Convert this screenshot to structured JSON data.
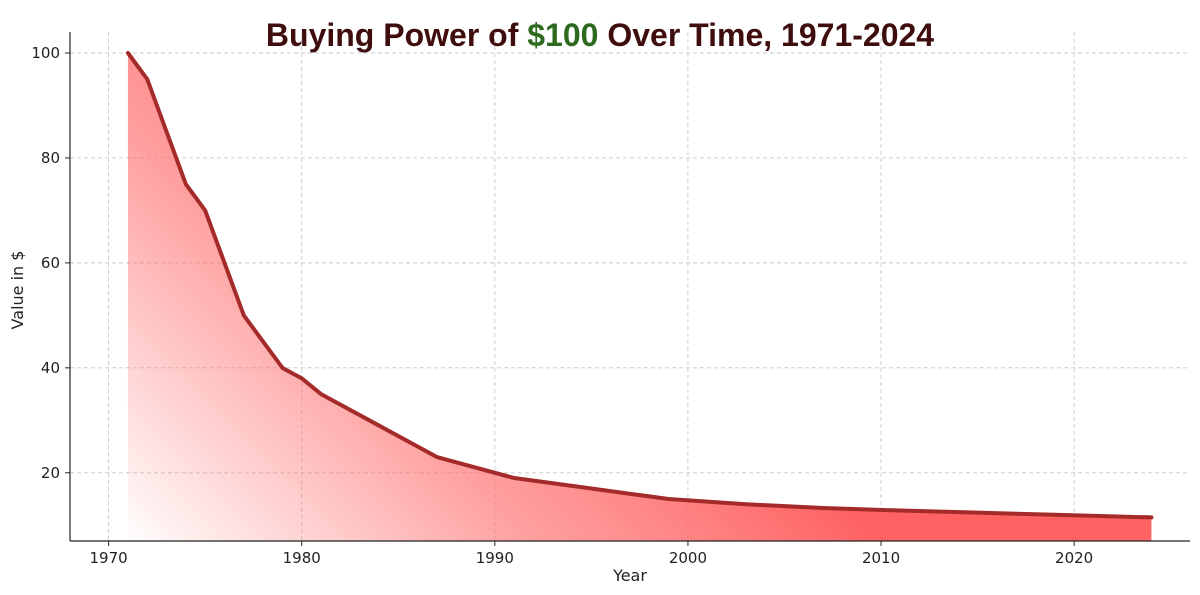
{
  "title": {
    "prefix": "Buying Power of ",
    "highlight": "$100",
    "suffix": " Over Time, 1971-2024",
    "color": "#3f0d0d",
    "highlight_color": "#2d6a1f"
  },
  "chart_data": {
    "type": "area",
    "title": "Buying Power of $100 Over Time, 1971-2024",
    "xlabel": "Year",
    "ylabel": "Value in $",
    "xlim": [
      1968,
      2026
    ],
    "ylim": [
      7,
      104
    ],
    "xticks": [
      1970,
      1980,
      1990,
      2000,
      2010,
      2020
    ],
    "yticks": [
      20,
      40,
      60,
      80,
      100
    ],
    "grid": true,
    "series": [
      {
        "name": "Value in $",
        "line_color": "#a52a2a",
        "fill_color": "#ff6b6b",
        "x": [
          1971,
          1972,
          1974,
          1975,
          1977,
          1979,
          1980,
          1981,
          1984,
          1987,
          1991,
          1995,
          1999,
          2003,
          2007,
          2011,
          2015,
          2019,
          2024
        ],
        "y": [
          100,
          95,
          75,
          70,
          50,
          40,
          38,
          35,
          29,
          23,
          19,
          17,
          15,
          14,
          13.3,
          12.8,
          12.4,
          12,
          11.5
        ]
      }
    ]
  }
}
